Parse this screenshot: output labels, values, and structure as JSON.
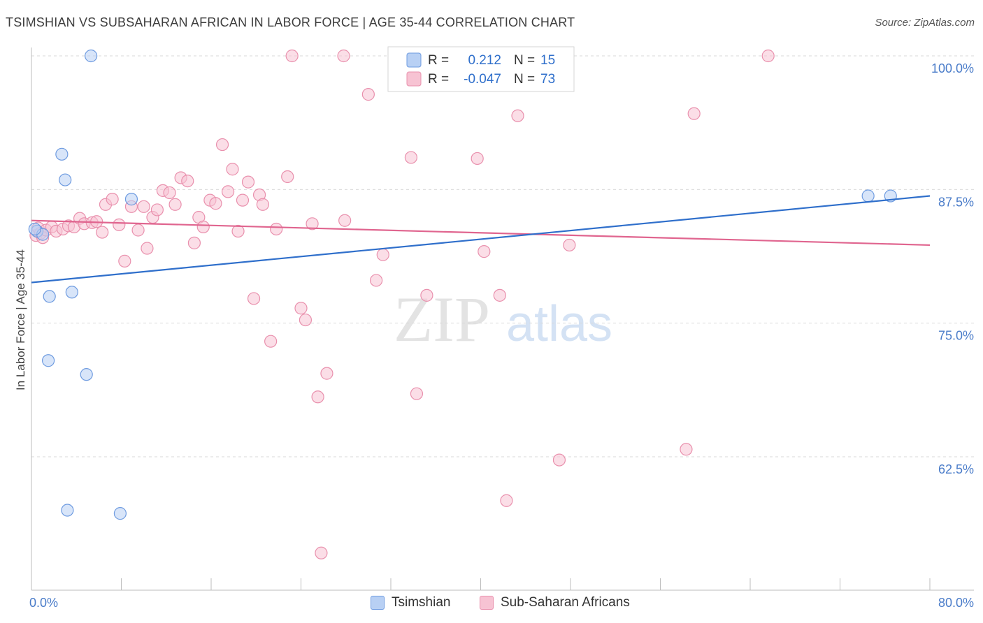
{
  "header": {
    "title": "TSIMSHIAN VS SUBSAHARAN AFRICAN IN LABOR FORCE | AGE 35-44 CORRELATION CHART",
    "source": "Source: ZipAtlas.com"
  },
  "watermark": {
    "zip": "ZIP",
    "atlas": "atlas"
  },
  "colors": {
    "tsimshian_fill": "#b8d0f4",
    "tsimshian_stroke": "#6e9be0",
    "tsimshian_line": "#2f6fcb",
    "subsaharan_fill": "#f7c3d3",
    "subsaharan_stroke": "#e990ad",
    "subsaharan_line": "#e0658f",
    "axis_label": "#4a7cc9",
    "grid": "#d9d9d9"
  },
  "legend": {
    "rows": [
      {
        "r_label": "R =",
        "r_value": "0.212",
        "n_label": "N =",
        "n_value": "15"
      },
      {
        "r_label": "R =",
        "r_value": "-0.047",
        "n_label": "N =",
        "n_value": "73"
      }
    ]
  },
  "chart_data": {
    "type": "scatter",
    "title": "TSIMSHIAN VS SUBSAHARAN AFRICAN IN LABOR FORCE | AGE 35-44 CORRELATION CHART",
    "xlabel": "",
    "ylabel": "In Labor Force | Age 35-44",
    "xlim": [
      0,
      80
    ],
    "ylim": [
      50.5,
      101.2
    ],
    "x_tick_labels": [
      "0.0%",
      "80.0%"
    ],
    "y_ticks": [
      62.5,
      75.0,
      87.5,
      100.0
    ],
    "y_tick_labels": [
      "62.5%",
      "75.0%",
      "87.5%",
      "100.0%"
    ],
    "grid": true,
    "legend_position": "top-center",
    "series": [
      {
        "name": "Tsimshian",
        "color": "#6e9be0",
        "trend": {
          "x": [
            0,
            80
          ],
          "y": [
            78.8,
            86.9
          ]
        },
        "points": [
          [
            0.5,
            83.6
          ],
          [
            1.0,
            83.3
          ],
          [
            1.5,
            71.5
          ],
          [
            1.6,
            77.5
          ],
          [
            2.7,
            90.8
          ],
          [
            3.0,
            88.4
          ],
          [
            3.2,
            57.5
          ],
          [
            3.6,
            77.9
          ],
          [
            4.9,
            70.2
          ],
          [
            5.3,
            100.0
          ],
          [
            7.9,
            57.2
          ],
          [
            8.9,
            86.6
          ],
          [
            74.5,
            86.9
          ],
          [
            76.5,
            86.9
          ],
          [
            0.3,
            83.8
          ]
        ]
      },
      {
        "name": "Sub-Saharan Africans",
        "color": "#e990ad",
        "trend": {
          "x": [
            0,
            80
          ],
          "y": [
            84.6,
            82.3
          ]
        },
        "points": [
          [
            0.4,
            83.2
          ],
          [
            0.6,
            83.9
          ],
          [
            0.8,
            83.4
          ],
          [
            1.0,
            83.0
          ],
          [
            1.3,
            83.7
          ],
          [
            1.8,
            84.0
          ],
          [
            2.2,
            83.6
          ],
          [
            2.8,
            83.8
          ],
          [
            3.3,
            84.1
          ],
          [
            3.8,
            84.0
          ],
          [
            4.3,
            84.8
          ],
          [
            4.7,
            84.3
          ],
          [
            5.4,
            84.4
          ],
          [
            5.8,
            84.5
          ],
          [
            6.3,
            83.5
          ],
          [
            6.6,
            86.1
          ],
          [
            7.2,
            86.6
          ],
          [
            7.8,
            84.2
          ],
          [
            8.3,
            80.8
          ],
          [
            8.9,
            85.9
          ],
          [
            9.5,
            83.7
          ],
          [
            10.0,
            85.9
          ],
          [
            10.3,
            82.0
          ],
          [
            10.8,
            84.9
          ],
          [
            11.2,
            85.6
          ],
          [
            11.7,
            87.4
          ],
          [
            12.3,
            87.2
          ],
          [
            12.8,
            86.1
          ],
          [
            13.3,
            88.6
          ],
          [
            13.9,
            88.3
          ],
          [
            14.5,
            82.5
          ],
          [
            14.9,
            84.9
          ],
          [
            15.3,
            84.0
          ],
          [
            15.9,
            86.5
          ],
          [
            16.4,
            86.2
          ],
          [
            17.0,
            91.7
          ],
          [
            17.5,
            87.3
          ],
          [
            17.9,
            89.4
          ],
          [
            18.4,
            83.6
          ],
          [
            18.8,
            86.5
          ],
          [
            19.3,
            88.2
          ],
          [
            19.8,
            77.3
          ],
          [
            20.3,
            87.0
          ],
          [
            20.6,
            86.1
          ],
          [
            21.3,
            73.3
          ],
          [
            21.8,
            83.8
          ],
          [
            22.8,
            88.7
          ],
          [
            23.2,
            100.0
          ],
          [
            24.0,
            76.4
          ],
          [
            24.4,
            75.3
          ],
          [
            25.0,
            84.3
          ],
          [
            25.5,
            68.1
          ],
          [
            26.3,
            70.3
          ],
          [
            27.8,
            100.0
          ],
          [
            27.9,
            84.6
          ],
          [
            30.0,
            96.4
          ],
          [
            30.7,
            79.0
          ],
          [
            31.3,
            81.4
          ],
          [
            32.8,
            100.0
          ],
          [
            33.8,
            90.5
          ],
          [
            34.3,
            68.4
          ],
          [
            35.2,
            77.6
          ],
          [
            39.7,
            90.4
          ],
          [
            40.3,
            81.7
          ],
          [
            41.7,
            77.6
          ],
          [
            42.3,
            58.4
          ],
          [
            43.3,
            94.4
          ],
          [
            47.0,
            62.2
          ],
          [
            47.9,
            82.3
          ],
          [
            58.3,
            63.2
          ],
          [
            59.0,
            94.6
          ],
          [
            65.6,
            100.0
          ],
          [
            25.8,
            53.5
          ]
        ]
      }
    ]
  }
}
